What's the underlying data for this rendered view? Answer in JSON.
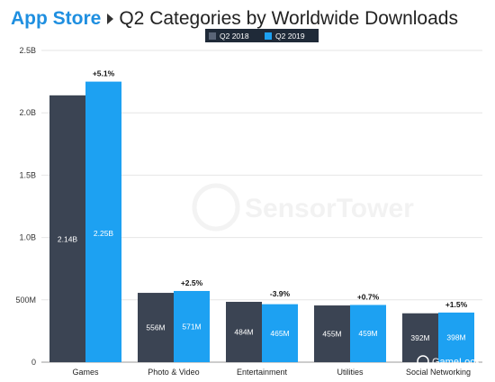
{
  "header": {
    "brand": "App Store",
    "title": "Q2 Categories by Worldwide Downloads"
  },
  "watermark": "SensorTower",
  "corner_watermark": "GameLook",
  "colors": {
    "q2_2018": "#3b4453",
    "q2_2019": "#1da1f2"
  },
  "chart_data": {
    "type": "bar",
    "categories": [
      "Games",
      "Photo & Video",
      "Entertainment",
      "Utilities",
      "Social Networking"
    ],
    "series": [
      {
        "name": "Q2 2018",
        "values": [
          2140,
          556,
          484,
          455,
          392
        ],
        "labels": [
          "2.14B",
          "556M",
          "484M",
          "455M",
          "392M"
        ]
      },
      {
        "name": "Q2 2019",
        "values": [
          2250,
          571,
          465,
          459,
          398
        ],
        "labels": [
          "2.25B",
          "571M",
          "465M",
          "459M",
          "398M"
        ]
      }
    ],
    "changes": [
      "+5.1%",
      "+2.5%",
      "-3.9%",
      "+0.7%",
      "+1.5%"
    ],
    "yunit": "millions of downloads",
    "ylim": [
      0,
      2500
    ],
    "yticks": [
      0,
      500,
      1000,
      1500,
      2000,
      2500
    ],
    "ytick_labels": [
      "0",
      "500M",
      "1.0B",
      "1.5B",
      "2.0B",
      "2.5B"
    ],
    "legend_position": "top-center",
    "grid": true
  }
}
